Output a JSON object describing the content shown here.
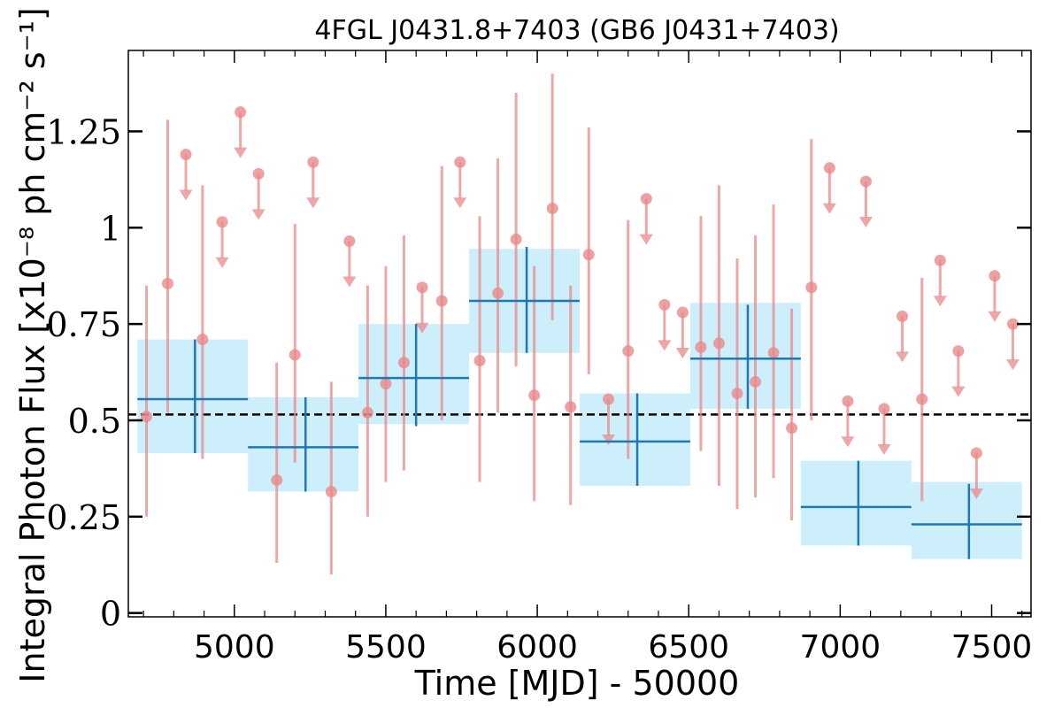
{
  "chart_data": {
    "type": "scatter",
    "title": "4FGL J0431.8+7403 (GB6 J0431+7403)",
    "xlabel": "Time [MJD] - 50000",
    "ylabel": "Integral Photon Flux [x10⁻⁸ ph cm⁻² s⁻¹]",
    "xlim": [
      4650,
      7630
    ],
    "ylim": [
      -0.01,
      1.46
    ],
    "x_ticks": [
      5000,
      5500,
      6000,
      6500,
      7000,
      7500
    ],
    "x_tick_labels": [
      "5000",
      "5500",
      "6000",
      "6500",
      "7000",
      "7500"
    ],
    "y_ticks": [
      0,
      0.25,
      0.5,
      0.75,
      1,
      1.25
    ],
    "y_tick_labels": [
      "0",
      "0.25",
      "0.5",
      "0.75",
      "1",
      "1.25"
    ],
    "mean_flux": 0.515,
    "colors": {
      "points": "#e8898a",
      "bins_fill": "#cdeffc",
      "bins_line": "#1f77b4",
      "mean_line": "#000000"
    },
    "series": [
      {
        "name": "",
        "kind": "short-bin detections",
        "points": [
          {
            "x": 4710,
            "y": 0.51,
            "ylo": 0.25,
            "yhi": 0.85
          },
          {
            "x": 4780,
            "y": 0.855,
            "ylo": 0.52,
            "yhi": 1.28
          },
          {
            "x": 4895,
            "y": 0.71,
            "ylo": 0.4,
            "yhi": 1.11
          },
          {
            "x": 5140,
            "y": 0.345,
            "ylo": 0.13,
            "yhi": 0.65
          },
          {
            "x": 5200,
            "y": 0.67,
            "ylo": 0.39,
            "yhi": 1.01
          },
          {
            "x": 5320,
            "y": 0.315,
            "ylo": 0.1,
            "yhi": 0.6
          },
          {
            "x": 5440,
            "y": 0.52,
            "ylo": 0.25,
            "yhi": 0.85
          },
          {
            "x": 5500,
            "y": 0.595,
            "ylo": 0.34,
            "yhi": 0.9
          },
          {
            "x": 5560,
            "y": 0.65,
            "ylo": 0.37,
            "yhi": 0.98
          },
          {
            "x": 5685,
            "y": 0.81,
            "ylo": 0.5,
            "yhi": 1.16
          },
          {
            "x": 5810,
            "y": 0.655,
            "ylo": 0.34,
            "yhi": 1.03
          },
          {
            "x": 5870,
            "y": 0.83,
            "ylo": 0.52,
            "yhi": 1.18
          },
          {
            "x": 5930,
            "y": 0.97,
            "ylo": 0.64,
            "yhi": 1.35
          },
          {
            "x": 5990,
            "y": 0.565,
            "ylo": 0.29,
            "yhi": 0.9
          },
          {
            "x": 6050,
            "y": 1.05,
            "ylo": 0.76,
            "yhi": 1.4
          },
          {
            "x": 6110,
            "y": 0.535,
            "ylo": 0.28,
            "yhi": 0.85
          },
          {
            "x": 6170,
            "y": 0.93,
            "ylo": 0.62,
            "yhi": 1.26
          },
          {
            "x": 6300,
            "y": 0.68,
            "ylo": 0.4,
            "yhi": 1.02
          },
          {
            "x": 6540,
            "y": 0.69,
            "ylo": 0.42,
            "yhi": 1.03
          },
          {
            "x": 6600,
            "y": 0.7,
            "ylo": 0.33,
            "yhi": 1.11
          },
          {
            "x": 6660,
            "y": 0.57,
            "ylo": 0.27,
            "yhi": 0.92
          },
          {
            "x": 6720,
            "y": 0.6,
            "ylo": 0.3,
            "yhi": 0.98
          },
          {
            "x": 6780,
            "y": 0.675,
            "ylo": 0.35,
            "yhi": 1.06
          },
          {
            "x": 6840,
            "y": 0.48,
            "ylo": 0.24,
            "yhi": 0.79
          },
          {
            "x": 6905,
            "y": 0.845,
            "ylo": 0.5,
            "yhi": 1.23
          },
          {
            "x": 7270,
            "y": 0.555,
            "ylo": 0.29,
            "yhi": 0.87
          }
        ]
      },
      {
        "name": "",
        "kind": "upper limits",
        "limits": [
          {
            "x": 4840,
            "y": 1.19
          },
          {
            "x": 4960,
            "y": 1.015
          },
          {
            "x": 5020,
            "y": 1.3
          },
          {
            "x": 5080,
            "y": 1.14
          },
          {
            "x": 5260,
            "y": 1.17
          },
          {
            "x": 5380,
            "y": 0.965
          },
          {
            "x": 5620,
            "y": 0.845
          },
          {
            "x": 5745,
            "y": 1.17
          },
          {
            "x": 6235,
            "y": 0.555
          },
          {
            "x": 6360,
            "y": 1.075
          },
          {
            "x": 6420,
            "y": 0.8
          },
          {
            "x": 6480,
            "y": 0.78
          },
          {
            "x": 6965,
            "y": 1.155
          },
          {
            "x": 7025,
            "y": 0.55
          },
          {
            "x": 7085,
            "y": 1.12
          },
          {
            "x": 7145,
            "y": 0.53
          },
          {
            "x": 7205,
            "y": 0.77
          },
          {
            "x": 7330,
            "y": 0.915
          },
          {
            "x": 7390,
            "y": 0.68
          },
          {
            "x": 7450,
            "y": 0.415
          },
          {
            "x": 7510,
            "y": 0.875
          },
          {
            "x": 7570,
            "y": 0.75
          }
        ]
      },
      {
        "name": "",
        "kind": "long bins",
        "bins": [
          {
            "x0": 4680,
            "x1": 5045,
            "xc": 4870,
            "y": 0.555,
            "ylo": 0.415,
            "yhi": 0.71,
            "fill_lo": 0.415,
            "fill_hi": 0.71
          },
          {
            "x0": 5045,
            "x1": 5410,
            "xc": 5235,
            "y": 0.43,
            "ylo": 0.315,
            "yhi": 0.56,
            "fill_lo": 0.315,
            "fill_hi": 0.56
          },
          {
            "x0": 5410,
            "x1": 5775,
            "xc": 5600,
            "y": 0.61,
            "ylo": 0.485,
            "yhi": 0.75,
            "fill_lo": 0.49,
            "fill_hi": 0.75
          },
          {
            "x0": 5775,
            "x1": 6140,
            "xc": 5965,
            "y": 0.81,
            "ylo": 0.675,
            "yhi": 0.95,
            "fill_lo": 0.675,
            "fill_hi": 0.945
          },
          {
            "x0": 6140,
            "x1": 6505,
            "xc": 6330,
            "y": 0.445,
            "ylo": 0.33,
            "yhi": 0.57,
            "fill_lo": 0.33,
            "fill_hi": 0.57
          },
          {
            "x0": 6505,
            "x1": 6870,
            "xc": 6695,
            "y": 0.66,
            "ylo": 0.53,
            "yhi": 0.8,
            "fill_lo": 0.53,
            "fill_hi": 0.805
          },
          {
            "x0": 6870,
            "x1": 7235,
            "xc": 7060,
            "y": 0.275,
            "ylo": 0.175,
            "yhi": 0.395,
            "fill_lo": 0.175,
            "fill_hi": 0.395
          },
          {
            "x0": 7235,
            "x1": 7600,
            "xc": 7425,
            "y": 0.23,
            "ylo": 0.14,
            "yhi": 0.335,
            "fill_lo": 0.14,
            "fill_hi": 0.34
          }
        ]
      }
    ]
  }
}
